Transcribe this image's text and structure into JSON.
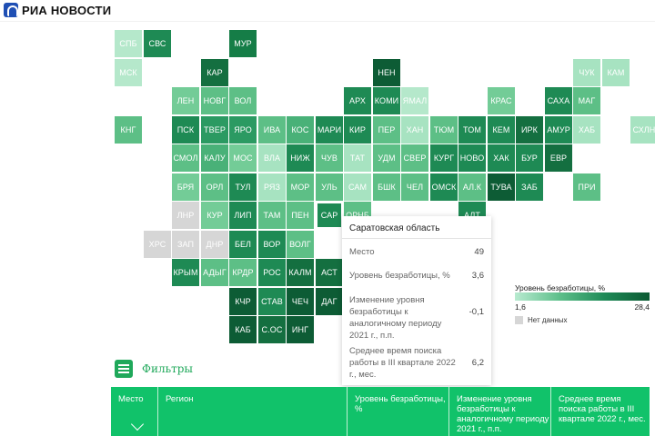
{
  "brand": {
    "logo_text": "РИА НОВОСТИ"
  },
  "map": {
    "tiles": [
      {
        "label": "СПБ",
        "color": "#b5e8cb"
      },
      {
        "label": "СВС",
        "color": "#1e8a54"
      },
      {
        "label": "МУР",
        "color": "#157d47"
      },
      {
        "label": "МСК",
        "color": "#b5e8cb"
      },
      {
        "label": "КАР",
        "color": "#146f40"
      },
      {
        "label": "НЕН",
        "color": "#0d5c35"
      },
      {
        "label": "ЧУК",
        "color": "#a7e3c1"
      },
      {
        "label": "КАМ",
        "color": "#a7e3c1"
      },
      {
        "label": "ЛЕН",
        "color": "#73cc97"
      },
      {
        "label": "НОВГ",
        "color": "#5dbf86"
      },
      {
        "label": "ВОЛ",
        "color": "#5dbf86"
      },
      {
        "label": "АРХ",
        "color": "#1e8a54"
      },
      {
        "label": "КОМИ",
        "color": "#1e8a54"
      },
      {
        "label": "ЯМАЛ",
        "color": "#b5e8cb"
      },
      {
        "label": "КРАС",
        "color": "#73cc97"
      },
      {
        "label": "САХА",
        "color": "#1e8a54"
      },
      {
        "label": "МАГ",
        "color": "#5dbf86"
      },
      {
        "label": "КНГ",
        "color": "#5dbf86"
      },
      {
        "label": "ПСК",
        "color": "#1e8a54"
      },
      {
        "label": "ТВЕР",
        "color": "#2b9a62"
      },
      {
        "label": "ЯРО",
        "color": "#2b9a62"
      },
      {
        "label": "ИВА",
        "color": "#5dbf86"
      },
      {
        "label": "КОС",
        "color": "#49b178"
      },
      {
        "label": "МАРИ",
        "color": "#1e8a54"
      },
      {
        "label": "КИР",
        "color": "#1e8a54"
      },
      {
        "label": "ПЕР",
        "color": "#5dbf86"
      },
      {
        "label": "ХАН",
        "color": "#a7e3c1"
      },
      {
        "label": "ТЮМ",
        "color": "#5dbf86"
      },
      {
        "label": "ТОМ",
        "color": "#1e8a54"
      },
      {
        "label": "КЕМ",
        "color": "#1e8a54"
      },
      {
        "label": "ИРК",
        "color": "#146f40"
      },
      {
        "label": "АМУР",
        "color": "#1e8a54"
      },
      {
        "label": "ХАБ",
        "color": "#a7e3c1"
      },
      {
        "label": "СХЛН",
        "color": "#a7e3c1"
      },
      {
        "label": "СМОЛ",
        "color": "#5dbf86"
      },
      {
        "label": "КАЛУ",
        "color": "#49b178"
      },
      {
        "label": "МОС",
        "color": "#73cc97"
      },
      {
        "label": "ВЛА",
        "color": "#a7e3c1"
      },
      {
        "label": "НИЖ",
        "color": "#1e8a54"
      },
      {
        "label": "ЧУВ",
        "color": "#5dbf86"
      },
      {
        "label": "ТАТ",
        "color": "#a7e3c1"
      },
      {
        "label": "УДМ",
        "color": "#5dbf86"
      },
      {
        "label": "СВЕР",
        "color": "#5dbf86"
      },
      {
        "label": "КУРГ",
        "color": "#1e8a54"
      },
      {
        "label": "НОВО",
        "color": "#1e8a54"
      },
      {
        "label": "ХАК",
        "color": "#1e8a54"
      },
      {
        "label": "БУР",
        "color": "#1e8a54"
      },
      {
        "label": "ЕВР",
        "color": "#146f40"
      },
      {
        "label": "БРЯ",
        "color": "#73cc97"
      },
      {
        "label": "ОРЛ",
        "color": "#5dbf86"
      },
      {
        "label": "ТУЛ",
        "color": "#1e8a54"
      },
      {
        "label": "РЯЗ",
        "color": "#a7e3c1"
      },
      {
        "label": "МОР",
        "color": "#5dbf86"
      },
      {
        "label": "УЛЬ",
        "color": "#5dbf86"
      },
      {
        "label": "САМ",
        "color": "#a7e3c1"
      },
      {
        "label": "БШК",
        "color": "#5dbf86"
      },
      {
        "label": "ЧЕЛ",
        "color": "#5dbf86"
      },
      {
        "label": "ОМСК",
        "color": "#1e8a54"
      },
      {
        "label": "АЛ.К",
        "color": "#5dbf86"
      },
      {
        "label": "ТУВА",
        "color": "#0d5c35"
      },
      {
        "label": "ЗАБ",
        "color": "#1e8a54"
      },
      {
        "label": "ПРИ",
        "color": "#5dbf86"
      },
      {
        "label": "ЛНР",
        "color": "#d6d6d6"
      },
      {
        "label": "КУР",
        "color": "#73cc97"
      },
      {
        "label": "ЛИП",
        "color": "#1e8a54"
      },
      {
        "label": "ТАМ",
        "color": "#5dbf86"
      },
      {
        "label": "ПЕН",
        "color": "#5dbf86"
      },
      {
        "label": "САР",
        "color": "#1e8a54"
      },
      {
        "label": "ОРНБ",
        "color": "#5dbf86"
      },
      {
        "label": "АЛТ",
        "color": "#1e8a54"
      },
      {
        "label": "ХРС",
        "color": "#d6d6d6"
      },
      {
        "label": "ЗАП",
        "color": "#d6d6d6"
      },
      {
        "label": "ДНР",
        "color": "#d6d6d6"
      },
      {
        "label": "БЕЛ",
        "color": "#1e8a54"
      },
      {
        "label": "ВОР",
        "color": "#1e8a54"
      },
      {
        "label": "ВОЛГ",
        "color": "#5dbf86"
      },
      {
        "label": "КРЫМ",
        "color": "#1e8a54"
      },
      {
        "label": "АДЫГ",
        "color": "#5dbf86"
      },
      {
        "label": "КРДР",
        "color": "#5dbf86"
      },
      {
        "label": "РОС",
        "color": "#1e8a54"
      },
      {
        "label": "КАЛМ",
        "color": "#146f40"
      },
      {
        "label": "АСТ",
        "color": "#146f40"
      },
      {
        "label": "КЧР",
        "color": "#0d5c35"
      },
      {
        "label": "СТАВ",
        "color": "#1e8a54"
      },
      {
        "label": "ЧЕЧ",
        "color": "#0d5c35"
      },
      {
        "label": "ДАГ",
        "color": "#0d5c35"
      },
      {
        "label": "КАБ",
        "color": "#0d5c35"
      },
      {
        "label": "С.ОС",
        "color": "#146f40"
      },
      {
        "label": "ИНГ",
        "color": "#0d5c35"
      }
    ]
  },
  "tooltip": {
    "title": "Саратовская область",
    "rows": [
      {
        "label": "Место",
        "value": "49"
      },
      {
        "label": "Уровень безработицы, %",
        "value": "3,6"
      },
      {
        "label": "Изменение уровня безработицы к аналогичному периоду 2021 г., п.п.",
        "value": "-0,1"
      },
      {
        "label": "Среднее время поиска работы в III квартале 2022 г., мес.",
        "value": "6,2"
      }
    ]
  },
  "legend": {
    "title": "Уровень безработицы, %",
    "min": "1,6",
    "max": "28,4",
    "no_data": "Нет данных"
  },
  "filters": {
    "label": "Фильтры"
  },
  "table": {
    "columns": [
      "Место",
      "Регион",
      "Уровень безработицы, %",
      "Изменение уровня безработицы к аналогичному периоду 2021 г., п.п.",
      "Среднее время поиска работы в III квартале 2022 г., мес."
    ]
  }
}
